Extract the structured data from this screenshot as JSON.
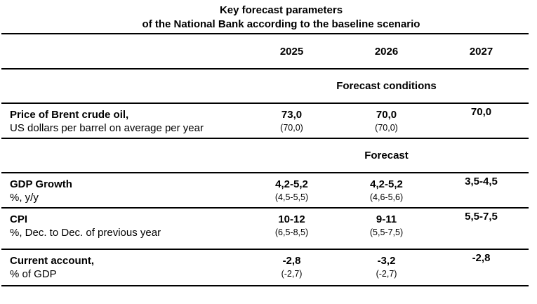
{
  "title": {
    "line1": "Key forecast parameters",
    "line2": "of the National Bank according to the baseline scenario"
  },
  "table": {
    "year_headers": [
      "2025",
      "2026",
      "2027"
    ],
    "section_conditions": "Forecast conditions",
    "section_forecast": "Forecast",
    "rows": {
      "brent": {
        "label": "Price of Brent crude oil,",
        "sublabel": "US dollars per barrel on average per year",
        "y2025": "73,0",
        "y2025_prev": "(70,0)",
        "y2026": "70,0",
        "y2026_prev": "(70,0)",
        "y2027": "70,0"
      },
      "gdp": {
        "label": "GDP Growth",
        "sublabel": "%, y/y",
        "y2025": "4,2-5,2",
        "y2025_prev": "(4,5-5,5)",
        "y2026": "4,2-5,2",
        "y2026_prev": "(4,6-5,6)",
        "y2027": "3,5-4,5"
      },
      "cpi": {
        "label": "CPI",
        "sublabel": "%, Dec. to Dec. of previous year",
        "y2025": "10-12",
        "y2025_prev": "(6,5-8,5)",
        "y2026": "9-11",
        "y2026_prev": "(5,5-7,5)",
        "y2027": "5,5-7,5"
      },
      "current_account": {
        "label": "Current account,",
        "sublabel": "% of GDP",
        "y2025": "-2,8",
        "y2025_prev": "(-2,7)",
        "y2026": "-3,2",
        "y2026_prev": "(-2,7)",
        "y2027": "-2,8"
      }
    }
  },
  "colors": {
    "text": "#000000",
    "rule": "#000000",
    "background": "#ffffff"
  }
}
